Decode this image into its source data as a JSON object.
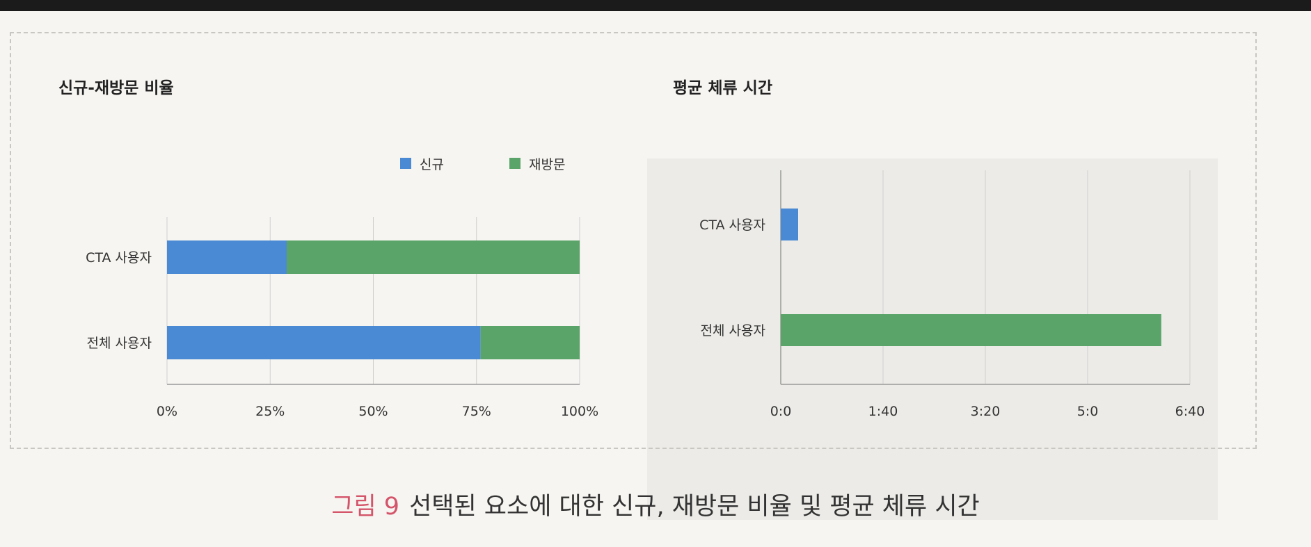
{
  "colors": {
    "new": "#4a89d3",
    "revisit": "#5aa46a",
    "grid": "#cfcfcf",
    "axis": "#9a9a9a",
    "text": "#333333",
    "caption_label": "#d4546a"
  },
  "caption": {
    "label": "그림 9",
    "text": "선택된 요소에 대한 신규, 재방문 비율 및 평균 체류 시간"
  },
  "chart_data": [
    {
      "type": "bar",
      "orientation": "horizontal",
      "stacked": true,
      "title": "신규-재방문 비율",
      "categories": [
        "CTA 사용자",
        "전체 사용자"
      ],
      "series": [
        {
          "name": "신규",
          "values": [
            0.29,
            0.76
          ],
          "color": "#4a89d3"
        },
        {
          "name": "재방문",
          "values": [
            0.71,
            0.24
          ],
          "color": "#5aa46a"
        }
      ],
      "xlim": [
        0,
        1
      ],
      "x_ticks": [
        "0%",
        "25%",
        "50%",
        "75%",
        "100%"
      ],
      "grid": true,
      "legend": "top-right"
    },
    {
      "type": "bar",
      "orientation": "horizontal",
      "title": "평균 체류 시간",
      "categories": [
        "CTA 사용자",
        "전체 사용자"
      ],
      "values": [
        17,
        372
      ],
      "bar_colors": [
        "#4a89d3",
        "#5aa46a"
      ],
      "x_unit": "seconds",
      "xlim": [
        0,
        400
      ],
      "x_ticks": [
        "0:0",
        "1:40",
        "3:20",
        "5:0",
        "6:40"
      ],
      "grid": true
    }
  ]
}
